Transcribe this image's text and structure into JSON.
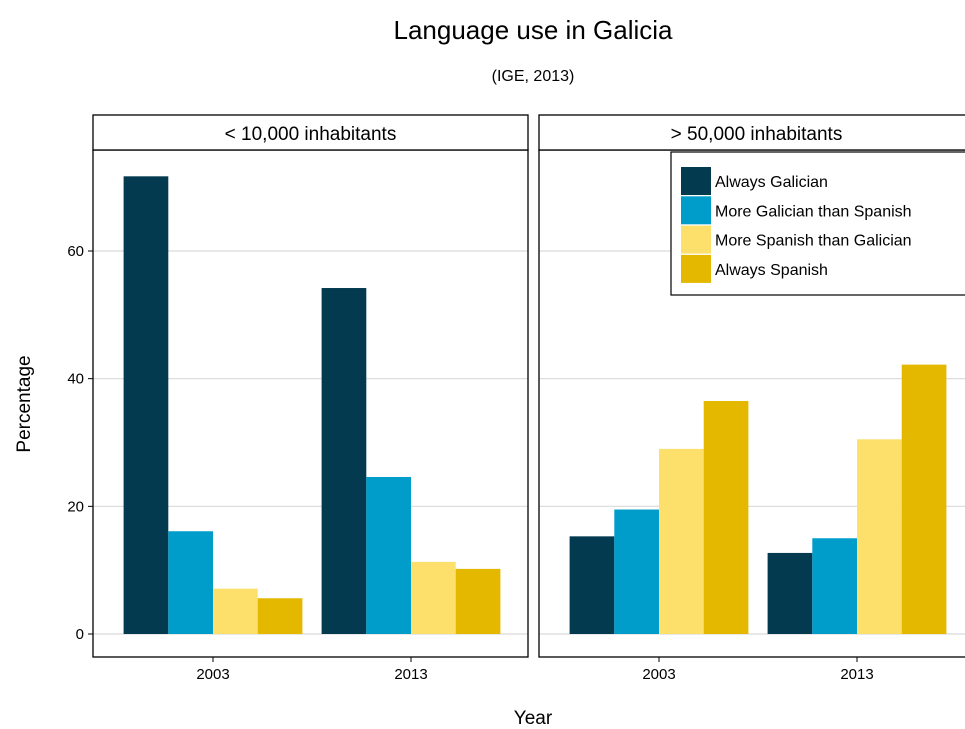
{
  "chart_data": {
    "type": "bar",
    "title": "Language use in Galicia",
    "subtitle": "(IGE, 2013)",
    "xlabel": "Year",
    "ylabel": "Percentage",
    "ylim": [
      0,
      72
    ],
    "yticks": [
      0,
      20,
      40,
      60
    ],
    "grid": true,
    "legend_position": "top-right",
    "categories": [
      "2003",
      "2013"
    ],
    "series_names": [
      "Always Galician",
      "More Galician than Spanish",
      "More Spanish than Galician",
      "Always Spanish"
    ],
    "colors": [
      "#033a4f",
      "#009dcb",
      "#fddf6c",
      "#e5b800"
    ],
    "facets": [
      {
        "label": "< 10,000 inhabitants",
        "series": [
          {
            "name": "Always Galician",
            "values": [
              71.7,
              54.2
            ]
          },
          {
            "name": "More Galician than Spanish",
            "values": [
              16.1,
              24.6
            ]
          },
          {
            "name": "More Spanish than Galician",
            "values": [
              7.1,
              11.3
            ]
          },
          {
            "name": "Always Spanish",
            "values": [
              5.6,
              10.2
            ]
          }
        ]
      },
      {
        "label": "> 50,000 inhabitants",
        "series": [
          {
            "name": "Always Galician",
            "values": [
              15.3,
              12.7
            ]
          },
          {
            "name": "More Galician than Spanish",
            "values": [
              19.5,
              15.0
            ]
          },
          {
            "name": "More Spanish than Galician",
            "values": [
              29.0,
              30.5
            ]
          },
          {
            "name": "Always Spanish",
            "values": [
              36.5,
              42.2
            ]
          }
        ]
      }
    ]
  }
}
